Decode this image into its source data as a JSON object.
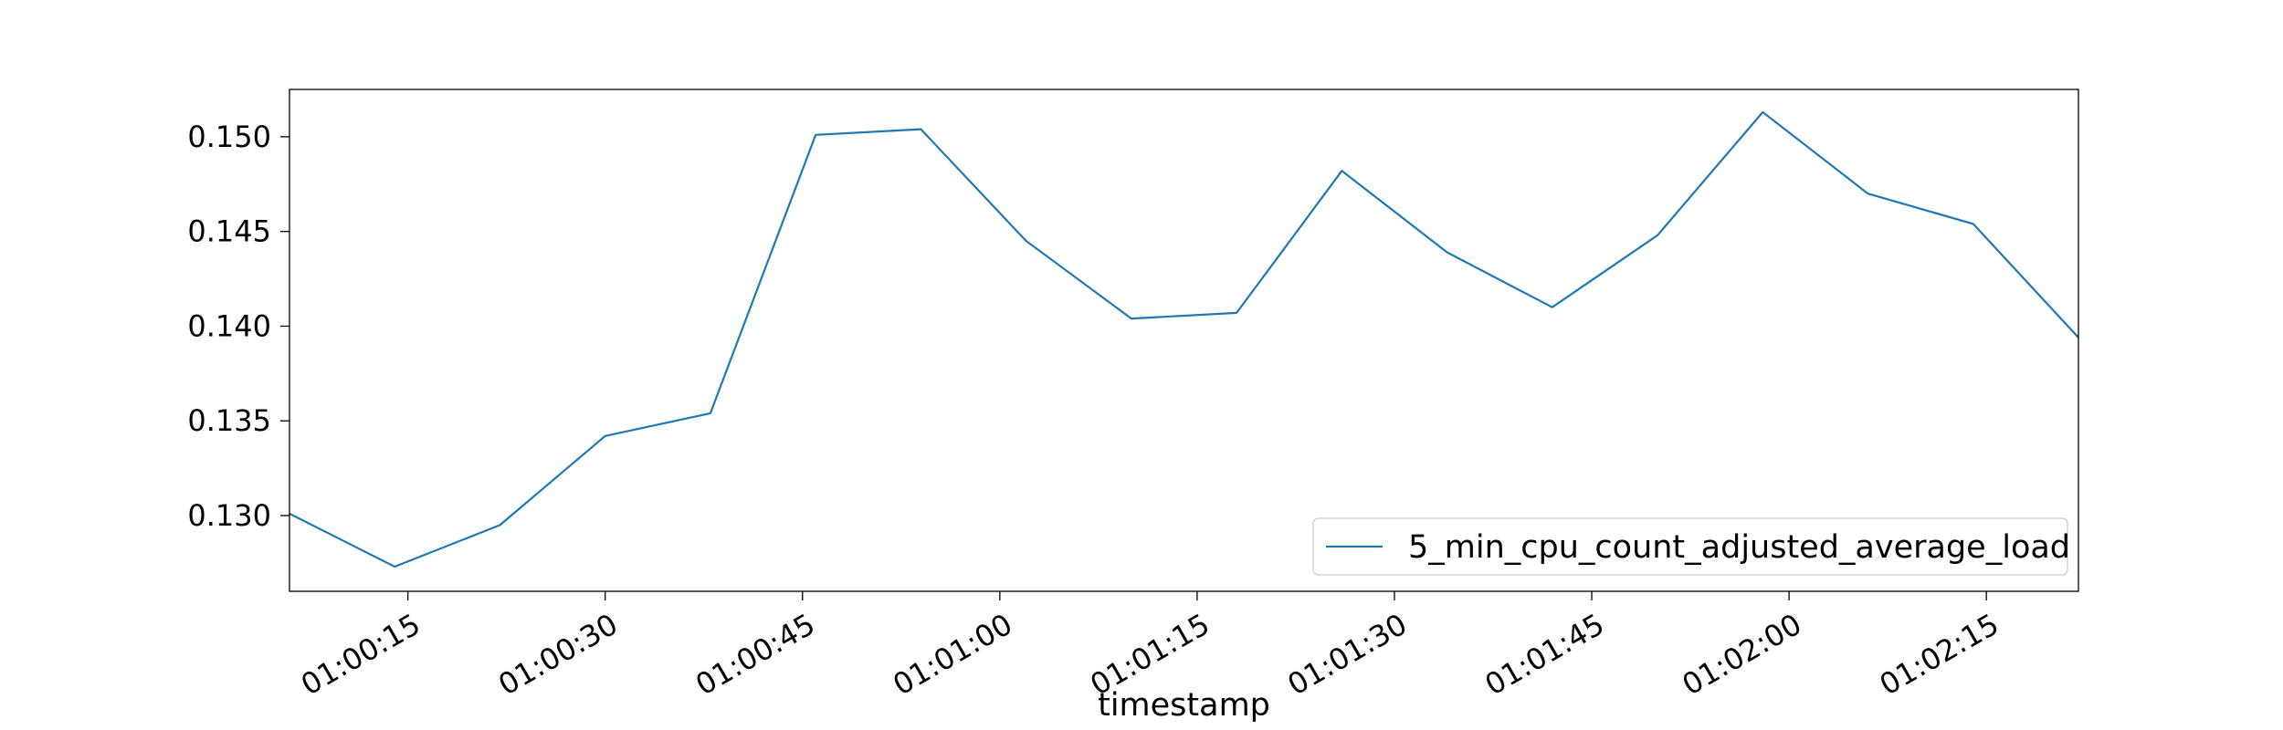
{
  "chart_data": {
    "type": "line",
    "title": "",
    "xlabel": "timestamp",
    "ylabel": "",
    "x": [
      "01:00:06",
      "01:00:14",
      "01:00:22",
      "01:00:30",
      "01:00:38",
      "01:00:46",
      "01:00:54",
      "01:01:02",
      "01:01:10",
      "01:01:18",
      "01:01:26",
      "01:01:34",
      "01:01:42",
      "01:01:50",
      "01:01:58",
      "01:02:06",
      "01:02:14",
      "01:02:22"
    ],
    "series": [
      {
        "name": "5_min_cpu_count_adjusted_average_load",
        "color": "#1f77b4",
        "values": [
          0.1301,
          0.1273,
          0.1295,
          0.1342,
          0.1354,
          0.1501,
          0.1504,
          0.1445,
          0.1404,
          0.1407,
          0.1482,
          0.1439,
          0.141,
          0.1448,
          0.1513,
          0.147,
          0.1454,
          0.1394
        ]
      }
    ],
    "xlim": [
      "01:00:06",
      "01:02:22"
    ],
    "ylim": [
      0.126,
      0.1525
    ],
    "xticks": [
      "01:00:15",
      "01:00:30",
      "01:00:45",
      "01:01:00",
      "01:01:15",
      "01:01:30",
      "01:01:45",
      "01:02:00",
      "01:02:15"
    ],
    "yticks": [
      "0.130",
      "0.135",
      "0.140",
      "0.145",
      "0.150"
    ],
    "grid": false,
    "legend_position": "lower-right"
  }
}
